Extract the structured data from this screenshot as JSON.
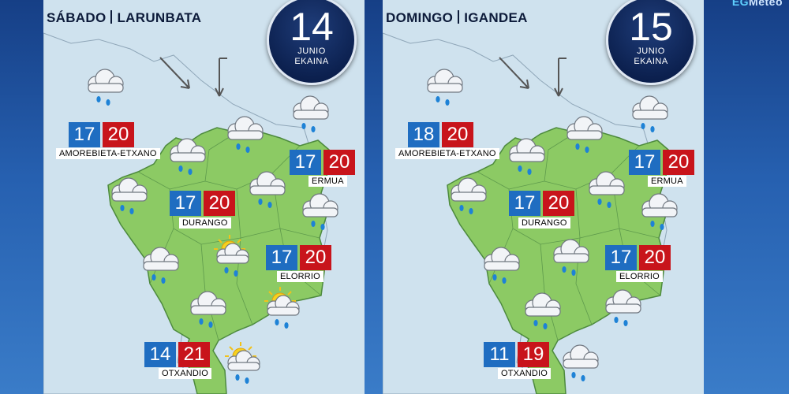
{
  "brand": {
    "pre": "EG",
    "post": "Meteo"
  },
  "panels": [
    {
      "day": "SÁBADO",
      "day_eu": "LARUNBATA",
      "date": "14",
      "month": "JUNIO",
      "month_eu": "EKAINA",
      "towns": [
        {
          "name": "AMOREBIETA-ETXANO",
          "min": "17",
          "max": "20"
        },
        {
          "name": "ERMUA",
          "min": "17",
          "max": "20"
        },
        {
          "name": "DURANGO",
          "min": "17",
          "max": "20"
        },
        {
          "name": "ELORRIO",
          "min": "17",
          "max": "20"
        },
        {
          "name": "OTXANDIO",
          "min": "14",
          "max": "21"
        }
      ]
    },
    {
      "day": "DOMINGO",
      "day_eu": "IGANDEA",
      "date": "15",
      "month": "JUNIO",
      "month_eu": "EKAINA",
      "towns": [
        {
          "name": "AMOREBIETA-ETXANO",
          "min": "18",
          "max": "20"
        },
        {
          "name": "ERMUA",
          "min": "17",
          "max": "20"
        },
        {
          "name": "DURANGO",
          "min": "17",
          "max": "20"
        },
        {
          "name": "ELORRIO",
          "min": "17",
          "max": "20"
        },
        {
          "name": "OTXANDIO",
          "min": "11",
          "max": "19"
        }
      ]
    }
  ],
  "icons": {
    "rain": "cloud-rain-icon",
    "sun_rain": "sun-cloud-rain-icon",
    "wind": "wind-arrow-icon"
  },
  "colors": {
    "min": "#1f6dc1",
    "max": "#c8141b",
    "land": "#8cca64",
    "sea": "#cfe2ee"
  }
}
